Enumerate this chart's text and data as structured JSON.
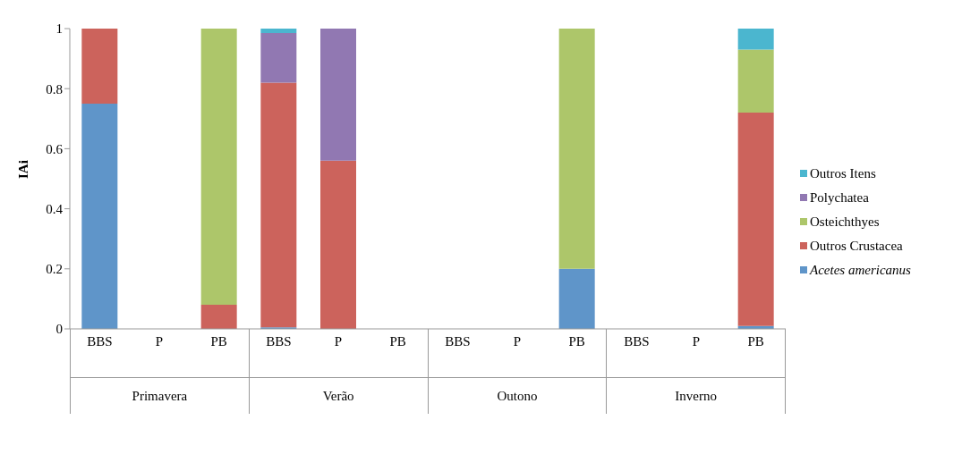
{
  "chart_data": {
    "type": "bar",
    "stacked": true,
    "ylabel": "IAi",
    "categories": [
      "BBS",
      "P",
      "PB",
      "BBS",
      "P",
      "PB",
      "BBS",
      "P",
      "PB",
      "BBS",
      "P",
      "PB"
    ],
    "annotations": [
      "Primavera",
      "Verão",
      "Outono",
      "Inverno"
    ],
    "series": [
      {
        "name": "Acetes americanus",
        "color": "#5f95c9",
        "values": [
          0.75,
          null,
          null,
          0.005,
          null,
          null,
          null,
          null,
          0.2,
          null,
          null,
          0.01
        ]
      },
      {
        "name": "Outros Crustacea",
        "color": "#cc635c",
        "values": [
          0.25,
          null,
          0.08,
          0.815,
          0.56,
          null,
          null,
          null,
          null,
          null,
          null,
          0.71
        ]
      },
      {
        "name": "Osteichthyes",
        "color": "#adc66a",
        "values": [
          null,
          null,
          0.92,
          null,
          null,
          null,
          null,
          null,
          0.8,
          null,
          null,
          0.21
        ]
      },
      {
        "name": "Polychatea",
        "color": "#9178b2",
        "values": [
          null,
          null,
          null,
          0.165,
          0.44,
          null,
          null,
          null,
          null,
          null,
          null,
          null
        ]
      },
      {
        "name": "Outros Itens",
        "color": "#4bb6cf",
        "values": [
          null,
          null,
          null,
          0.015,
          null,
          null,
          null,
          null,
          null,
          null,
          null,
          0.07
        ]
      }
    ],
    "ylim": [
      0,
      1
    ],
    "yticks": [
      0,
      0.2,
      0.4,
      0.6,
      0.8,
      1
    ],
    "legend": "right"
  }
}
